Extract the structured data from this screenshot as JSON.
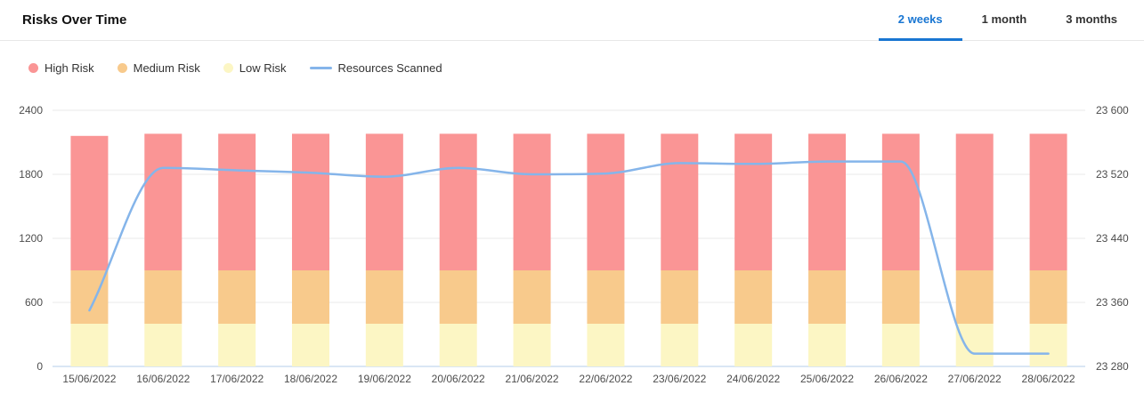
{
  "header": {
    "title": "Risks Over Time",
    "tabs": [
      {
        "label": "2 weeks",
        "active": true
      },
      {
        "label": "1 month",
        "active": false
      },
      {
        "label": "3 months",
        "active": false
      }
    ]
  },
  "legend": [
    {
      "label": "High Risk",
      "marker": "dot",
      "color": "#fa9595"
    },
    {
      "label": "Medium Risk",
      "marker": "dot",
      "color": "#f8ca8c"
    },
    {
      "label": "Low Risk",
      "marker": "dot",
      "color": "#fcf6c4"
    },
    {
      "label": "Resources Scanned",
      "marker": "line",
      "color": "#85b5ea"
    }
  ],
  "colors": {
    "accent_blue": "#1976d2",
    "grid": "#e8e8e8",
    "baseline": "#b6cce9",
    "high_risk": "#fa9595",
    "medium_risk": "#f8ca8c",
    "low_risk": "#fcf6c4",
    "line": "#85b5ea"
  },
  "chart_data": {
    "type": "bar",
    "subtype": "stacked-bars-with-line-overlay",
    "title": "Risks Over Time",
    "grid": true,
    "legend_position": "top-left",
    "categories": [
      "15/06/2022",
      "16/06/2022",
      "17/06/2022",
      "18/06/2022",
      "19/06/2022",
      "20/06/2022",
      "21/06/2022",
      "22/06/2022",
      "23/06/2022",
      "24/06/2022",
      "25/06/2022",
      "26/06/2022",
      "27/06/2022",
      "28/06/2022"
    ],
    "series": [
      {
        "name": "High Risk",
        "type": "bar",
        "stack": "risks",
        "color": "#fa9595",
        "values": [
          1260,
          1280,
          1280,
          1280,
          1280,
          1280,
          1280,
          1280,
          1280,
          1280,
          1280,
          1280,
          1280,
          1280
        ]
      },
      {
        "name": "Medium Risk",
        "type": "bar",
        "stack": "risks",
        "color": "#f8ca8c",
        "values": [
          500,
          500,
          500,
          500,
          500,
          500,
          500,
          500,
          500,
          500,
          500,
          500,
          500,
          500
        ]
      },
      {
        "name": "Low Risk",
        "type": "bar",
        "stack": "risks",
        "color": "#fcf6c4",
        "values": [
          400,
          400,
          400,
          400,
          400,
          400,
          400,
          400,
          400,
          400,
          400,
          400,
          400,
          400
        ]
      },
      {
        "name": "Resources Scanned",
        "type": "line",
        "axis": "right",
        "color": "#85b5ea",
        "values": [
          23350,
          23528,
          23525,
          23522,
          23517,
          23528,
          23520,
          23521,
          23534,
          23533,
          23536,
          23536,
          23296,
          23296
        ]
      }
    ],
    "left_axis": {
      "min": 0,
      "max": 2400,
      "ticks": [
        0,
        600,
        1200,
        1800,
        2400
      ],
      "tick_labels": [
        "0",
        "600",
        "1200",
        "1800",
        "2400"
      ]
    },
    "right_axis": {
      "min": 23280,
      "max": 23600,
      "ticks": [
        23280,
        23360,
        23440,
        23520,
        23600
      ],
      "tick_labels": [
        "23 280",
        "23 360",
        "23 440",
        "23 520",
        "23 600"
      ]
    }
  }
}
